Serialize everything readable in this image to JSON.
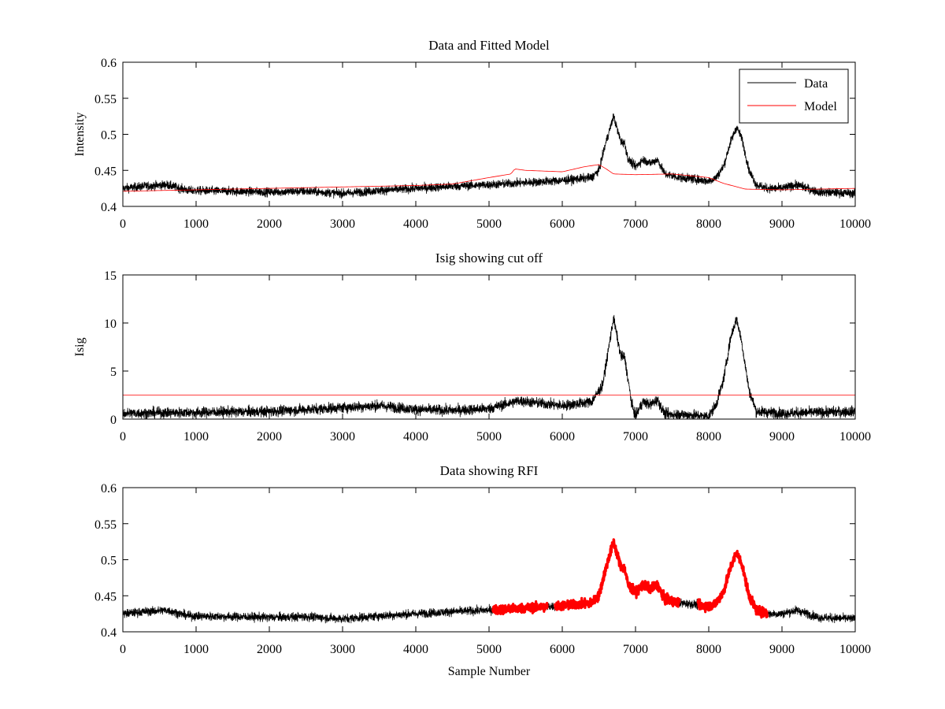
{
  "figure": {
    "background": "#ffffff"
  },
  "colors": {
    "data": "#000000",
    "model": "#ff0000",
    "cutoff": "#ff0000",
    "rfi": "#ff0000",
    "axes": "#000000"
  },
  "chart_data": [
    {
      "type": "line",
      "title": "Data and Fitted Model",
      "xlabel": "",
      "ylabel": "Intensity",
      "xlim": [
        0,
        10000
      ],
      "ylim": [
        0.4,
        0.6
      ],
      "xticks": [
        0,
        1000,
        2000,
        3000,
        4000,
        5000,
        6000,
        7000,
        8000,
        9000,
        10000
      ],
      "xtick_labels": [
        "0",
        "1000",
        "2000",
        "3000",
        "4000",
        "5000",
        "6000",
        "7000",
        "8000",
        "9000",
        "10000"
      ],
      "yticks": [
        0.4,
        0.45,
        0.5,
        0.55,
        0.6
      ],
      "ytick_labels": [
        "0.4",
        "0.45",
        "0.5",
        "0.55",
        "0.6"
      ],
      "grid": false,
      "legend": {
        "position": "top-right",
        "entries": [
          "Data",
          "Model"
        ]
      },
      "series": [
        {
          "name": "Data",
          "color": "#000000",
          "noise": 0.006,
          "x": [
            0,
            300,
            600,
            900,
            1500,
            2000,
            2500,
            3000,
            3500,
            4000,
            4500,
            5000,
            5500,
            6000,
            6400,
            6500,
            6600,
            6700,
            6800,
            6850,
            6900,
            7000,
            7100,
            7200,
            7300,
            7400,
            7600,
            7800,
            8000,
            8100,
            8200,
            8300,
            8380,
            8450,
            8550,
            8650,
            8800,
            9000,
            9200,
            9500,
            10000
          ],
          "y": [
            0.425,
            0.428,
            0.43,
            0.422,
            0.421,
            0.42,
            0.421,
            0.418,
            0.422,
            0.425,
            0.428,
            0.43,
            0.433,
            0.436,
            0.44,
            0.45,
            0.49,
            0.525,
            0.49,
            0.488,
            0.465,
            0.455,
            0.465,
            0.46,
            0.465,
            0.445,
            0.44,
            0.438,
            0.435,
            0.44,
            0.455,
            0.49,
            0.51,
            0.495,
            0.45,
            0.43,
            0.425,
            0.425,
            0.43,
            0.42,
            0.418
          ]
        },
        {
          "name": "Model",
          "color": "#ff0000",
          "noise": 0,
          "x": [
            0,
            1000,
            2000,
            3000,
            4000,
            4500,
            5000,
            5300,
            5350,
            5500,
            6000,
            6300,
            6500,
            6600,
            6700,
            7000,
            7500,
            8000,
            8200,
            8500,
            9000,
            9500,
            10000
          ],
          "y": [
            0.421,
            0.423,
            0.425,
            0.427,
            0.429,
            0.431,
            0.44,
            0.445,
            0.452,
            0.45,
            0.448,
            0.455,
            0.458,
            0.452,
            0.445,
            0.444,
            0.445,
            0.44,
            0.432,
            0.424,
            0.423,
            0.424,
            0.425
          ]
        }
      ]
    },
    {
      "type": "line",
      "title": "Isig showing cut off",
      "xlabel": "",
      "ylabel": "Isig",
      "xlim": [
        0,
        10000
      ],
      "ylim": [
        0,
        15
      ],
      "xticks": [
        0,
        1000,
        2000,
        3000,
        4000,
        5000,
        6000,
        7000,
        8000,
        9000,
        10000
      ],
      "xtick_labels": [
        "0",
        "1000",
        "2000",
        "3000",
        "4000",
        "5000",
        "6000",
        "7000",
        "8000",
        "9000",
        "10000"
      ],
      "yticks": [
        0,
        5,
        10,
        15
      ],
      "ytick_labels": [
        "0",
        "5",
        "10",
        "15"
      ],
      "grid": false,
      "series": [
        {
          "color": "#000000",
          "noise": 0.55,
          "clip_min": 0,
          "x": [
            0,
            1000,
            2000,
            3000,
            3500,
            4000,
            4500,
            5000,
            5400,
            6000,
            6400,
            6550,
            6700,
            6800,
            6850,
            6900,
            6950,
            7000,
            7100,
            7200,
            7300,
            7400,
            7600,
            8000,
            8100,
            8200,
            8300,
            8380,
            8450,
            8550,
            8650,
            9000,
            10000
          ],
          "y": [
            0.6,
            0.7,
            0.8,
            1.2,
            1.4,
            1.0,
            0.9,
            1.1,
            1.9,
            1.4,
            1.8,
            3.5,
            10.5,
            6.5,
            6.5,
            4.0,
            1.5,
            0.3,
            1.8,
            1.5,
            2.0,
            0.5,
            0.5,
            0.3,
            1.5,
            4.0,
            8.5,
            10.5,
            8.0,
            3.0,
            0.8,
            0.6,
            0.8
          ]
        },
        {
          "name": "",
          "color": "#ff0000",
          "noise": 0,
          "x": [
            0,
            10000
          ],
          "y": [
            2.5,
            2.5
          ]
        }
      ]
    },
    {
      "type": "line",
      "title": "Data showing RFI",
      "xlabel": "Sample Number",
      "ylabel": "",
      "xlim": [
        0,
        10000
      ],
      "ylim": [
        0.4,
        0.6
      ],
      "xticks": [
        0,
        1000,
        2000,
        3000,
        4000,
        5000,
        6000,
        7000,
        8000,
        9000,
        10000
      ],
      "xtick_labels": [
        "0",
        "1000",
        "2000",
        "3000",
        "4000",
        "5000",
        "6000",
        "7000",
        "8000",
        "9000",
        "10000"
      ],
      "yticks": [
        0.4,
        0.45,
        0.5,
        0.55,
        0.6
      ],
      "ytick_labels": [
        "0.4",
        "0.45",
        "0.5",
        "0.55",
        "0.6"
      ],
      "grid": false,
      "series": [
        {
          "color": "#000000",
          "noise": 0.006,
          "x": [
            0,
            300,
            600,
            900,
            1500,
            2000,
            2500,
            3000,
            3500,
            4000,
            4500,
            5000,
            5500,
            6000,
            6400,
            6500,
            6600,
            6700,
            6800,
            6850,
            6900,
            7000,
            7100,
            7200,
            7300,
            7400,
            7600,
            7800,
            8000,
            8100,
            8200,
            8300,
            8380,
            8450,
            8550,
            8650,
            8800,
            9000,
            9200,
            9500,
            10000
          ],
          "y": [
            0.425,
            0.428,
            0.43,
            0.422,
            0.421,
            0.42,
            0.421,
            0.418,
            0.422,
            0.425,
            0.428,
            0.43,
            0.433,
            0.436,
            0.44,
            0.45,
            0.49,
            0.525,
            0.49,
            0.488,
            0.465,
            0.455,
            0.465,
            0.46,
            0.465,
            0.445,
            0.44,
            0.438,
            0.435,
            0.44,
            0.455,
            0.49,
            0.51,
            0.495,
            0.45,
            0.43,
            0.425,
            0.425,
            0.43,
            0.42,
            0.418
          ]
        }
      ],
      "highlight": {
        "color": "#ff0000",
        "ranges": [
          [
            5050,
            5800
          ],
          [
            5900,
            7600
          ],
          [
            7850,
            8800
          ]
        ]
      }
    }
  ]
}
